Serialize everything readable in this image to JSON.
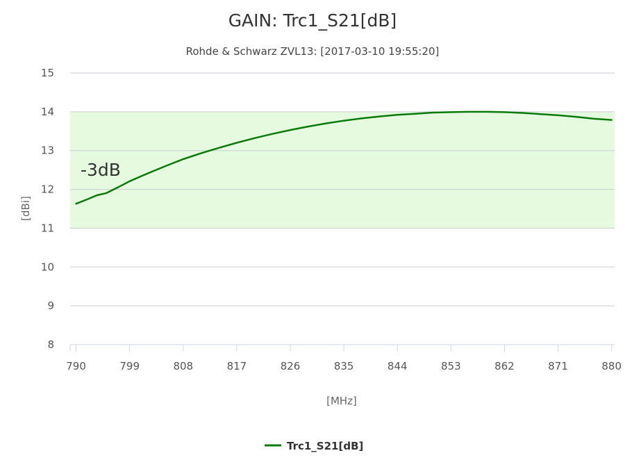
{
  "chart_data": {
    "type": "line",
    "title": "GAIN: Trc1_S21[dB]",
    "subtitle": "Rohde & Schwarz ZVL13: [2017-03-10 19:55:20]",
    "xlabel": "[MHz]",
    "ylabel": "[dBi]",
    "xlim": [
      789,
      880.5
    ],
    "ylim": [
      8,
      15
    ],
    "x_ticks": [
      "790",
      "799",
      "808",
      "817",
      "826",
      "835",
      "844",
      "853",
      "862",
      "871",
      "880"
    ],
    "y_ticks": [
      "8",
      "9",
      "10",
      "11",
      "12",
      "13",
      "14",
      "15"
    ],
    "grid": true,
    "legend": "bottom-center",
    "band": {
      "label": "-3dB",
      "from": 11,
      "to": 14,
      "color": "#e6fae0"
    },
    "series": [
      {
        "name": "Trc1_S21[dB]",
        "color": "#0a7a0a",
        "x": [
          790,
          792,
          793.5,
          795,
          797,
          799,
          802,
          805,
          808,
          811,
          814,
          817,
          820,
          823,
          826,
          829,
          832,
          835,
          838,
          841,
          844,
          847,
          850,
          853,
          856,
          859,
          862,
          865,
          868,
          871,
          874,
          877,
          880
        ],
        "y": [
          11.63,
          11.75,
          11.85,
          11.9,
          12.05,
          12.21,
          12.41,
          12.6,
          12.78,
          12.93,
          13.07,
          13.2,
          13.32,
          13.43,
          13.53,
          13.62,
          13.7,
          13.77,
          13.83,
          13.88,
          13.92,
          13.95,
          13.98,
          13.99,
          14.0,
          14.0,
          13.99,
          13.97,
          13.94,
          13.91,
          13.87,
          13.82,
          13.79
        ]
      }
    ]
  }
}
